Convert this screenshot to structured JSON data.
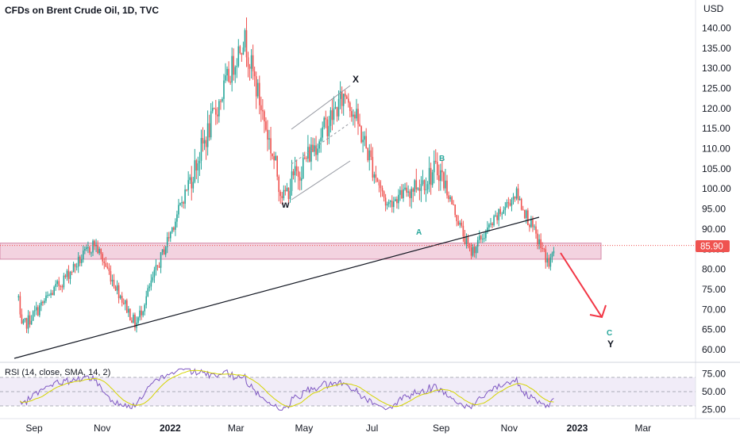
{
  "title": "CFDs on Brent Crude Oil, 1D, TVC",
  "currency": "USD",
  "chart_data": {
    "type": "candlestick",
    "title": "CFDs on Brent Crude Oil, 1D, TVC",
    "y_axis_unit": "USD",
    "ylim": [
      56,
      145
    ],
    "y_ticks": [
      "60.00",
      "65.00",
      "70.00",
      "75.00",
      "80.00",
      "85.00",
      "90.00",
      "95.00",
      "100.00",
      "105.00",
      "110.00",
      "115.00",
      "120.00",
      "125.00",
      "130.00",
      "135.00",
      "140.00"
    ],
    "x_ticks": [
      "Sep",
      "Nov",
      "2022",
      "Mar",
      "May",
      "Jul",
      "Sep",
      "Nov",
      "2023",
      "Mar"
    ],
    "last_price": "85.90",
    "up_color": "#26a69a",
    "down_color": "#ef5350",
    "key_prices": [
      {
        "date": "2021-08-20",
        "value": 65
      },
      {
        "date": "2021-10-25",
        "value": 86.5
      },
      {
        "date": "2021-12-01",
        "value": 66
      },
      {
        "date": "2022-03-08",
        "value": 138
      },
      {
        "date": "2022-04-12",
        "value": 98
      },
      {
        "date": "2022-06-08",
        "value": 124
      },
      {
        "date": "2022-07-14",
        "value": 96
      },
      {
        "date": "2022-08-30",
        "value": 105
      },
      {
        "date": "2022-09-27",
        "value": 84
      },
      {
        "date": "2022-11-07",
        "value": 99
      },
      {
        "date": "2022-12-07",
        "value": 81
      },
      {
        "date": "2022-12-12",
        "value": 85.9
      }
    ],
    "annotations": {
      "wave_labels": [
        "X",
        "W",
        "B",
        "A",
        "C",
        "Y"
      ],
      "zone": {
        "from": 82.5,
        "to": 86.5,
        "color": "#e1bee7"
      },
      "trendline": "rising support line",
      "arrow": "projected decline"
    }
  },
  "rsi": {
    "label": "RSI (14, close, SMA, 14, 2)",
    "ticks": [
      "75.00",
      "50.00",
      "25.00"
    ],
    "levels": [
      70,
      50,
      30
    ],
    "line_color": "#7e57c2",
    "sma_color": "#d4d400"
  },
  "wave_labels": {
    "x": "X",
    "w": "w",
    "b": "B",
    "a": "A",
    "c": "C",
    "y": "Y"
  }
}
